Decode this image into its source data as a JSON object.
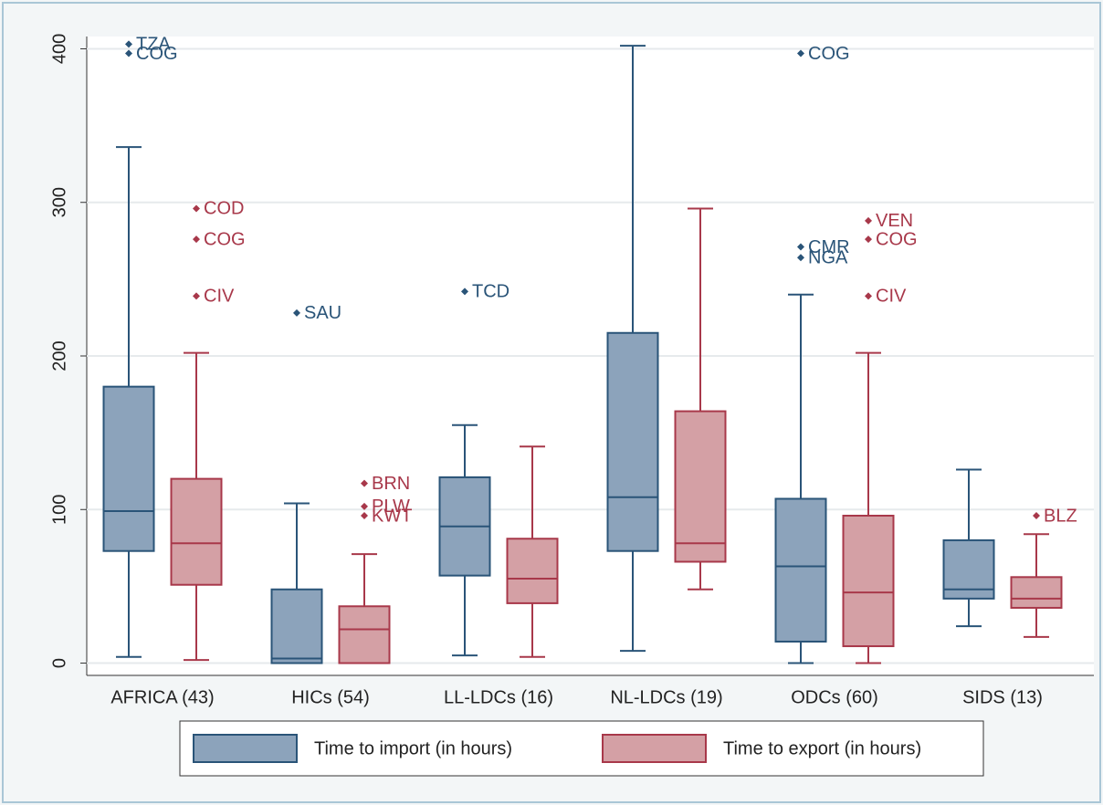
{
  "chart_data": {
    "type": "box",
    "categories": [
      "AFRICA (43)",
      "HICs (54)",
      "LL-LDCs (16)",
      "NL-LDCs (19)",
      "ODCs (60)",
      "SIDS (13)"
    ],
    "ylim": [
      -8,
      408
    ],
    "yticks": [
      0,
      100,
      200,
      300,
      400
    ],
    "grid": true,
    "legend": "bottom",
    "series": [
      {
        "name": "Time to import (in hours)",
        "color": "#8ca3bb",
        "edge": "#2a5478",
        "boxes": [
          {
            "min": 4,
            "q1": 73,
            "median": 99,
            "q3": 180,
            "max": 336,
            "outliers": [
              {
                "value": 403,
                "label": "TZA"
              },
              {
                "value": 397,
                "label": "COG"
              }
            ]
          },
          {
            "min": 0,
            "q1": 0,
            "median": 3,
            "q3": 48,
            "max": 104,
            "outliers": [
              {
                "value": 228,
                "label": "SAU"
              }
            ]
          },
          {
            "min": 5,
            "q1": 57,
            "median": 89,
            "q3": 121,
            "max": 155,
            "outliers": [
              {
                "value": 242,
                "label": "TCD"
              }
            ]
          },
          {
            "min": 8,
            "q1": 73,
            "median": 108,
            "q3": 215,
            "max": 402,
            "outliers": []
          },
          {
            "min": 0,
            "q1": 14,
            "median": 63,
            "q3": 107,
            "max": 240,
            "outliers": [
              {
                "value": 397,
                "label": "COG"
              },
              {
                "value": 271,
                "label": "CMR"
              },
              {
                "value": 264,
                "label": "NGA"
              }
            ]
          },
          {
            "min": 24,
            "q1": 42,
            "median": 48,
            "q3": 80,
            "max": 126,
            "outliers": []
          }
        ]
      },
      {
        "name": "Time to export (in hours)",
        "color": "#d4a0a5",
        "edge": "#a8384a",
        "boxes": [
          {
            "min": 2,
            "q1": 51,
            "median": 78,
            "q3": 120,
            "max": 202,
            "outliers": [
              {
                "value": 296,
                "label": "COD"
              },
              {
                "value": 276,
                "label": "COG"
              },
              {
                "value": 239,
                "label": "CIV"
              }
            ]
          },
          {
            "min": 0,
            "q1": 0,
            "median": 22,
            "q3": 37,
            "max": 71,
            "outliers": [
              {
                "value": 117,
                "label": "BRN"
              },
              {
                "value": 102,
                "label": "PLW"
              },
              {
                "value": 96,
                "label": "KWT"
              }
            ]
          },
          {
            "min": 4,
            "q1": 39,
            "median": 55,
            "q3": 81,
            "max": 141,
            "outliers": []
          },
          {
            "min": 48,
            "q1": 66,
            "median": 78,
            "q3": 164,
            "max": 296,
            "outliers": []
          },
          {
            "min": 0,
            "q1": 11,
            "median": 46,
            "q3": 96,
            "max": 202,
            "outliers": [
              {
                "value": 288,
                "label": "VEN"
              },
              {
                "value": 276,
                "label": "COG"
              },
              {
                "value": 239,
                "label": "CIV"
              }
            ]
          },
          {
            "min": 17,
            "q1": 36,
            "median": 42,
            "q3": 56,
            "max": 84,
            "outliers": [
              {
                "value": 96,
                "label": "BLZ"
              }
            ]
          }
        ]
      }
    ]
  }
}
